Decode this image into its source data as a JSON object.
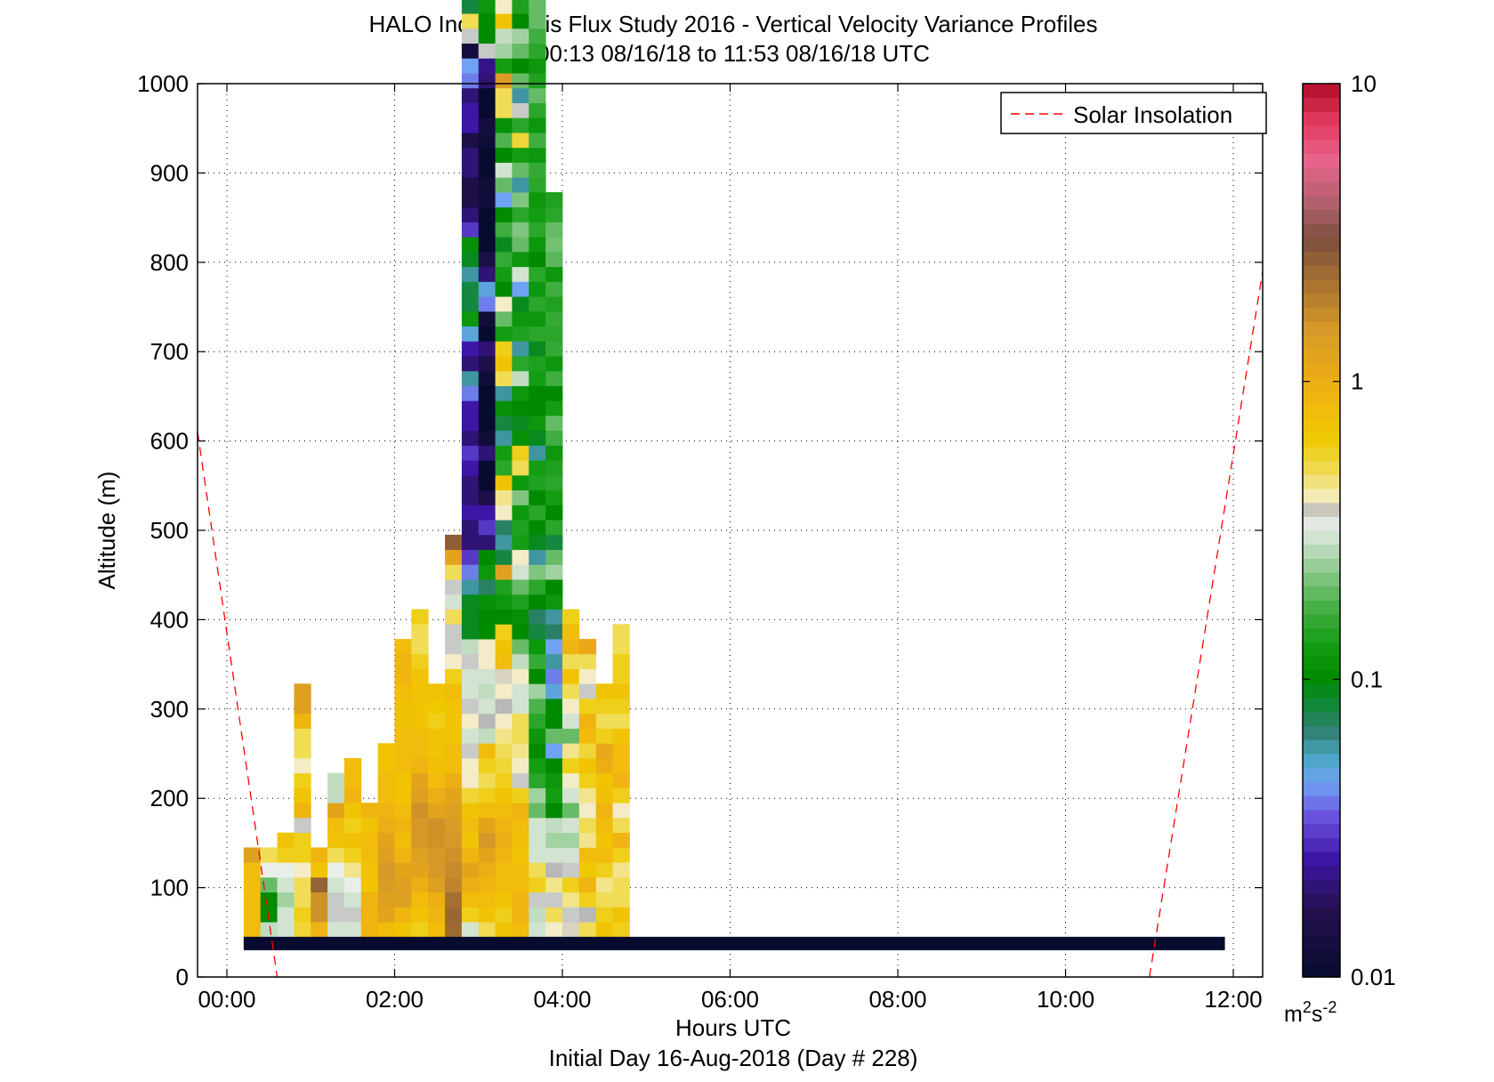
{
  "chart_data": {
    "type": "heatmap",
    "title": "HALO Indianapolis Flux Study 2016 - Vertical Velocity Variance Profiles",
    "subtitle": "00:13 08/16/18 to 11:53 08/16/18  UTC",
    "xlabel": "Hours UTC",
    "xlabel2": "Initial Day 16-Aug-2018 (Day # 228)",
    "ylabel": "Altitude (m)",
    "x_range_hours": [
      -0.35,
      12.35
    ],
    "y_range_m": [
      0,
      1000
    ],
    "x_ticks": [
      {
        "hour": 0,
        "label": "00:00"
      },
      {
        "hour": 2,
        "label": "02:00"
      },
      {
        "hour": 4,
        "label": "04:00"
      },
      {
        "hour": 6,
        "label": "06:00"
      },
      {
        "hour": 8,
        "label": "08:00"
      },
      {
        "hour": 10,
        "label": "10:00"
      },
      {
        "hour": 12,
        "label": "12:00"
      }
    ],
    "y_ticks": [
      {
        "value": 0,
        "label": "0"
      },
      {
        "value": 100,
        "label": "100"
      },
      {
        "value": 200,
        "label": "200"
      },
      {
        "value": 300,
        "label": "300"
      },
      {
        "value": 400,
        "label": "400"
      },
      {
        "value": 500,
        "label": "500"
      },
      {
        "value": 600,
        "label": "600"
      },
      {
        "value": 700,
        "label": "700"
      },
      {
        "value": 800,
        "label": "800"
      },
      {
        "value": 900,
        "label": "900"
      },
      {
        "value": 1000,
        "label": "1000"
      }
    ],
    "grid": true,
    "colorbar": {
      "scale": "log",
      "range": [
        0.01,
        10
      ],
      "ticks": [
        {
          "value": 0.01,
          "label": "0.01"
        },
        {
          "value": 0.1,
          "label": "0.1"
        },
        {
          "value": 1,
          "label": "1"
        },
        {
          "value": 10,
          "label": "10"
        }
      ],
      "unit_base": "m",
      "unit_sup1": "2",
      "unit_mid": "s",
      "unit_sup2": "-2"
    },
    "legend": {
      "label": "Solar Insolation",
      "position": "top-right",
      "color": "#ff0000"
    },
    "solar_insolation_lines": [
      {
        "x_hours": [
          -0.35,
          0.6
        ],
        "altitude_m": [
          610,
          0
        ]
      },
      {
        "x_hours": [
          11.0,
          12.35
        ],
        "altitude_m": [
          0,
          790
        ]
      }
    ],
    "surface_band": {
      "hour_start": 0.2,
      "hour_end": 11.9,
      "altitude_m": [
        30,
        45
      ],
      "value": 0.01
    },
    "grid_spec": {
      "hour_start": 0.2,
      "hour_step": 0.2,
      "alt_start_m": 45,
      "alt_step_m": 16.67
    },
    "colormap_stops": [
      {
        "value": 0.01,
        "color": "#070b2e"
      },
      {
        "value": 0.017,
        "color": "#24104f"
      },
      {
        "value": 0.025,
        "color": "#3d16a8"
      },
      {
        "value": 0.035,
        "color": "#6b55e0"
      },
      {
        "value": 0.045,
        "color": "#6fa2f2"
      },
      {
        "value": 0.055,
        "color": "#4aa6c4"
      },
      {
        "value": 0.068,
        "color": "#2f7e6e"
      },
      {
        "value": 0.085,
        "color": "#0c8a30"
      },
      {
        "value": 0.1,
        "color": "#008a00"
      },
      {
        "value": 0.13,
        "color": "#139d13"
      },
      {
        "value": 0.17,
        "color": "#3fad3f"
      },
      {
        "value": 0.22,
        "color": "#7fc47f"
      },
      {
        "value": 0.28,
        "color": "#c1dcc1"
      },
      {
        "value": 0.33,
        "color": "#e9efe8"
      },
      {
        "value": 0.36,
        "color": "#b8b8b8"
      },
      {
        "value": 0.4,
        "color": "#f4ecc6"
      },
      {
        "value": 0.5,
        "color": "#f0dc55"
      },
      {
        "value": 0.65,
        "color": "#efc900"
      },
      {
        "value": 0.85,
        "color": "#f1b80e"
      },
      {
        "value": 1.1,
        "color": "#e8a818"
      },
      {
        "value": 1.5,
        "color": "#d69928"
      },
      {
        "value": 2.2,
        "color": "#a56f30"
      },
      {
        "value": 3.0,
        "color": "#7d4f3e"
      },
      {
        "value": 4.0,
        "color": "#b2606e"
      },
      {
        "value": 5.5,
        "color": "#e8648c"
      },
      {
        "value": 7.5,
        "color": "#e23a5e"
      },
      {
        "value": 10,
        "color": "#b00d28"
      }
    ],
    "profiles": [
      {
        "hour": 0.2,
        "values": [
          0.8,
          0.8,
          0.8,
          0.8,
          0.8,
          1.3
        ]
      },
      {
        "hour": 0.4,
        "values": [
          0.28,
          0.1,
          0.1,
          0.2,
          0.33,
          0.5
        ]
      },
      {
        "hour": 0.6,
        "values": [
          0.3,
          0.3,
          0.25,
          0.3,
          0.33,
          0.6,
          0.7
        ]
      },
      {
        "hour": 0.8,
        "values": [
          0.55,
          0.6,
          0.5,
          0.5,
          0.4,
          0.6,
          0.6,
          0.35,
          0.9,
          0.7,
          0.6,
          0.4,
          0.5,
          0.5,
          0.9,
          1.3,
          1.3
        ]
      },
      {
        "hour": 1.0,
        "values": [
          0.9,
          1.6,
          1.6,
          2.5,
          0.7,
          0.9
        ]
      },
      {
        "hour": 1.2,
        "values": [
          0.3,
          0.35,
          0.35,
          0.3,
          0.33,
          0.5,
          0.7,
          0.8,
          1.2,
          0.28,
          0.28
        ]
      },
      {
        "hour": 1.4,
        "values": [
          0.3,
          0.35,
          0.3,
          0.33,
          0.45,
          0.6,
          0.75,
          0.6,
          0.7,
          0.9,
          0.8,
          0.8
        ]
      },
      {
        "hour": 1.6,
        "values": [
          0.9,
          0.9,
          0.9,
          0.7,
          0.7,
          0.8,
          0.8,
          0.7,
          0.9
        ]
      },
      {
        "hour": 1.8,
        "values": [
          0.8,
          1.2,
          1.3,
          1.4,
          1.5,
          1.3,
          1.2,
          1.0,
          0.9,
          0.8,
          0.8,
          0.7,
          0.7
        ]
      },
      {
        "hour": 2.0,
        "values": [
          0.7,
          0.9,
          1.3,
          1.3,
          1.2,
          0.9,
          0.8,
          0.9,
          0.8,
          0.7,
          0.7,
          0.8,
          0.8,
          0.8,
          0.75,
          0.75,
          0.8,
          0.9,
          0.9,
          0.8
        ]
      },
      {
        "hour": 2.2,
        "values": [
          0.6,
          0.7,
          0.8,
          1.0,
          1.2,
          1.3,
          1.5,
          1.5,
          1.6,
          1.3,
          1.2,
          0.9,
          0.8,
          0.8,
          0.7,
          0.7,
          0.7,
          0.7,
          0.6,
          0.5,
          0.5,
          0.6
        ]
      },
      {
        "hour": 2.4,
        "values": [
          0.8,
          0.9,
          1.0,
          1.3,
          1.5,
          1.5,
          1.6,
          1.6,
          1.2,
          1.0,
          0.8,
          0.75,
          0.7,
          0.7,
          0.6,
          0.65,
          0.7
        ]
      },
      {
        "hour": 2.6,
        "values": [
          2.3,
          2.4,
          2.2,
          1.8,
          1.7,
          1.6,
          1.5,
          1.4,
          1.3,
          1.2,
          1.0,
          0.8,
          0.8,
          0.7,
          0.7,
          0.7,
          0.8,
          0.6,
          0.4,
          0.35,
          0.35,
          0.5,
          0.3,
          0.35,
          0.5,
          1.2,
          2.6
        ]
      },
      {
        "hour": 2.8,
        "values": [
          0.3,
          0.6,
          0.8,
          1.0,
          1.2,
          0.9,
          0.7,
          0.8,
          0.7,
          0.55,
          0.4,
          0.4,
          0.35,
          0.3,
          0.4,
          0.35,
          0.3,
          0.3,
          0.35,
          0.28,
          0.09,
          0.09,
          0.09,
          0.06,
          0.04,
          0.03,
          0.02,
          0.02,
          0.025,
          0.02,
          0.02,
          0.025,
          0.03,
          0.02,
          0.025,
          0.025,
          0.04,
          0.06,
          0.02,
          0.025,
          0.05,
          0.12,
          0.08,
          0.08,
          0.06,
          0.09,
          0.11,
          0.03,
          0.02,
          0.015,
          0.015,
          0.02,
          0.02,
          0.015,
          0.025,
          0.025,
          0.02,
          0.04,
          0.045,
          0.013,
          0.35,
          0.5,
          0.08,
          0.6,
          0.09,
          0.3,
          0.1,
          0.6
        ]
      },
      {
        "hour": 3.0,
        "values": [
          0.5,
          0.7,
          0.8,
          0.9,
          1.0,
          1.2,
          1.5,
          1.2,
          0.8,
          0.6,
          0.5,
          0.6,
          0.8,
          0.28,
          0.36,
          0.3,
          0.28,
          0.3,
          0.4,
          0.4,
          0.1,
          0.1,
          0.11,
          0.07,
          0.12,
          0.1,
          0.02,
          0.03,
          0.025,
          0.015,
          0.01,
          0.01,
          0.02,
          0.012,
          0.01,
          0.01,
          0.01,
          0.012,
          0.015,
          0.02,
          0.01,
          0.012,
          0.04,
          0.05,
          0.02,
          0.015,
          0.01,
          0.01,
          0.01,
          0.012,
          0.012,
          0.01,
          0.01,
          0.012,
          0.013,
          0.01,
          0.01,
          0.02,
          0.022,
          0.35,
          0.1,
          0.1,
          0.12,
          0.25,
          0.08,
          0.06,
          0.3,
          0.7
        ]
      },
      {
        "hour": 3.2,
        "values": [
          0.7,
          0.6,
          0.7,
          0.8,
          0.8,
          0.9,
          1.0,
          0.9,
          0.8,
          0.7,
          0.6,
          0.55,
          0.5,
          0.45,
          0.4,
          0.36,
          0.4,
          0.38,
          0.8,
          0.7,
          0.6,
          0.1,
          0.12,
          0.14,
          1.3,
          0.08,
          0.06,
          0.07,
          0.4,
          0.45,
          0.7,
          0.15,
          0.13,
          0.06,
          0.08,
          0.11,
          0.06,
          0.5,
          0.7,
          0.6,
          0.13,
          0.2,
          0.4,
          0.1,
          0.13,
          0.16,
          0.09,
          0.17,
          0.1,
          0.045,
          0.2,
          0.3,
          0.1,
          0.18,
          0.11,
          0.5,
          0.5,
          1.4,
          0.13,
          0.25,
          0.28,
          0.7,
          0.4,
          0.05,
          0.7,
          0.32
        ]
      },
      {
        "hour": 3.4,
        "values": [
          0.8,
          0.9,
          0.9,
          0.8,
          0.8,
          0.7,
          0.75,
          0.8,
          0.9,
          0.6,
          0.35,
          0.4,
          0.45,
          0.5,
          0.5,
          0.3,
          0.3,
          0.4,
          0.28,
          0.2,
          0.1,
          0.11,
          0.14,
          0.2,
          0.3,
          0.4,
          0.13,
          0.14,
          0.12,
          0.22,
          0.12,
          0.5,
          0.6,
          0.11,
          0.09,
          0.1,
          0.12,
          0.28,
          0.15,
          0.06,
          0.14,
          0.12,
          0.09,
          0.045,
          0.3,
          0.12,
          0.2,
          0.22,
          0.15,
          0.22,
          0.06,
          0.2,
          0.13,
          0.55,
          0.15,
          0.35,
          0.06,
          0.2,
          0.1,
          0.2,
          0.25,
          0.1,
          0.14,
          0.1,
          0.18,
          0.15,
          0.16,
          0.12
        ]
      },
      {
        "hour": 3.6,
        "values": [
          0.3,
          0.28,
          0.35,
          0.6,
          0.5,
          0.3,
          0.3,
          0.3,
          0.2,
          0.25,
          0.15,
          0.13,
          0.1,
          0.12,
          0.15,
          0.18,
          0.25,
          0.1,
          0.16,
          0.12,
          0.08,
          0.07,
          0.1,
          0.15,
          0.22,
          0.06,
          0.09,
          0.1,
          0.15,
          0.1,
          0.14,
          0.13,
          0.06,
          0.09,
          0.12,
          0.1,
          0.1,
          0.13,
          0.14,
          0.09,
          0.15,
          0.12,
          0.15,
          0.12,
          0.15,
          0.1,
          0.12,
          0.15,
          0.13,
          0.12,
          0.15,
          0.16,
          0.12,
          0.17,
          0.12,
          0.15,
          0.2,
          0.14,
          0.12,
          0.15,
          0.17,
          0.2,
          0.2,
          0.1,
          0.11,
          0.28,
          0.2,
          0.2
        ]
      },
      {
        "hour": 3.8,
        "values": [
          0.4,
          0.5,
          0.35,
          0.45,
          0.36,
          0.3,
          0.25,
          0.28,
          0.1,
          0.13,
          0.12,
          0.1,
          0.045,
          0.2,
          0.1,
          0.1,
          0.05,
          0.04,
          0.06,
          0.045,
          0.07,
          0.06,
          0.12,
          0.1,
          0.25,
          0.2,
          0.08,
          0.15,
          0.1,
          0.13,
          0.15,
          0.14,
          0.12,
          0.17,
          0.2,
          0.13,
          0.1,
          0.17,
          0.12,
          0.16,
          0.15,
          0.16,
          0.14,
          0.17,
          0.12,
          0.19,
          0.21,
          0.2,
          0.15,
          0.14
        ]
      },
      {
        "hour": 4.0,
        "values": [
          0.38,
          0.35,
          0.45,
          0.6,
          0.35,
          0.3,
          0.25,
          0.3,
          0.2,
          0.3,
          0.4,
          0.6,
          0.45,
          0.2,
          0.3,
          0.4,
          0.5,
          0.7,
          0.5,
          0.9,
          0.8,
          0.6
        ]
      },
      {
        "hour": 4.2,
        "values": [
          0.5,
          0.36,
          0.6,
          0.9,
          0.65,
          0.8,
          0.45,
          0.5,
          0.4,
          0.45,
          0.6,
          0.7,
          0.55,
          0.8,
          0.9,
          0.6,
          0.35,
          0.4,
          0.5,
          1.1
        ]
      },
      {
        "hour": 4.4,
        "values": [
          0.7,
          0.6,
          0.5,
          0.45,
          0.6,
          0.8,
          0.7,
          0.8,
          0.9,
          0.75,
          0.7,
          1.0,
          1.1,
          0.6,
          0.5,
          0.6,
          0.7
        ]
      },
      {
        "hour": 4.6,
        "values": [
          0.6,
          0.7,
          0.5,
          0.5,
          0.45,
          0.6,
          0.9,
          0.5,
          0.4,
          0.6,
          0.9,
          0.8,
          0.8,
          0.7,
          0.5,
          0.6,
          0.7,
          0.6,
          0.6,
          0.5,
          0.5
        ]
      }
    ]
  }
}
